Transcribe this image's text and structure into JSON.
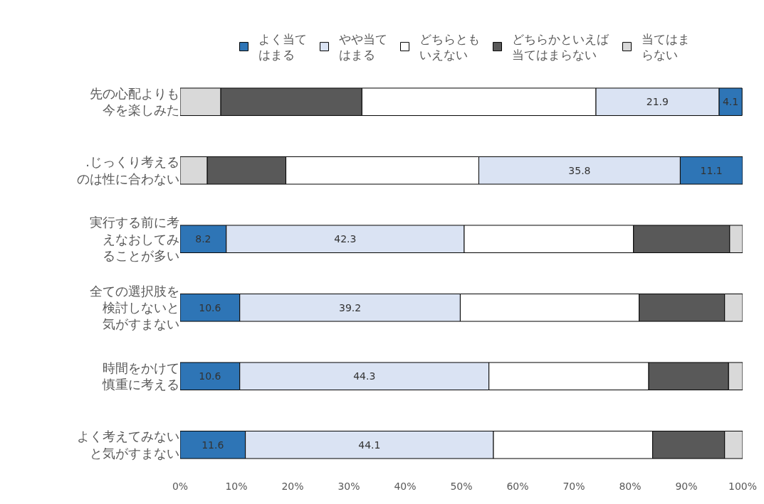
{
  "chart_data": {
    "type": "bar",
    "orientation": "horizontal",
    "legend": "top",
    "categories": [
      "先の心配よりも今を楽しみた",
      ".じっくり考えるのは性に合わない",
      "実行する前に考えなおしてみることが多い",
      "全ての選択肢を検討しないと気がすまない",
      "時間をかけて慎重に考える",
      "よく考えてみないと気がすまない"
    ],
    "xlim": [
      0,
      100
    ],
    "xticks": [
      {
        "value": 0,
        "label": "0%"
      },
      {
        "value": 10,
        "label": "10%"
      },
      {
        "value": 20,
        "label": "20%"
      },
      {
        "value": 30,
        "label": "30%"
      },
      {
        "value": 40,
        "label": "40%"
      },
      {
        "value": 50,
        "label": "50%"
      },
      {
        "value": 60,
        "label": "60%"
      },
      {
        "value": 70,
        "label": "70%"
      },
      {
        "value": 80,
        "label": "80%"
      },
      {
        "value": 90,
        "label": "90%"
      },
      {
        "value": 100,
        "label": "100%"
      }
    ],
    "grid": false,
    "series": [
      {
        "name": "よく当てはまる",
        "color": "#2e75b6",
        "values": [
          4.1,
          11.1,
          8.2,
          10.6,
          10.6,
          11.6
        ],
        "base": [
          95.8,
          88.9,
          0,
          0,
          0,
          0
        ],
        "value_labels": [
          "4.1",
          "11.1",
          "8.2",
          "10.6",
          "10.6",
          "11.6"
        ]
      },
      {
        "name": "やや当てはまる",
        "color": "#dae3f3",
        "values": [
          21.9,
          35.8,
          42.3,
          39.2,
          44.3,
          44.1
        ],
        "base": [
          73.9,
          53.1,
          8.2,
          10.6,
          10.6,
          11.6
        ],
        "value_labels": [
          "21.9",
          "35.8",
          "42.3",
          "39.2",
          "44.3",
          "44.1"
        ]
      },
      {
        "name": "どちらともいえない",
        "color": "#ffffff",
        "values": [
          41.6,
          34.3,
          30.1,
          31.8,
          28.4,
          28.3
        ],
        "base": [
          32.3,
          18.8,
          50.5,
          49.8,
          54.9,
          55.7
        ]
      },
      {
        "name": "どちらかといえば当てはまらない",
        "color": "#595959",
        "values": [
          25.1,
          14.0,
          17.1,
          15.2,
          14.2,
          12.8
        ],
        "base": [
          7.2,
          4.8,
          80.6,
          81.6,
          83.3,
          84.0
        ]
      },
      {
        "name": "当てはまらない",
        "color": "#d9d9d9",
        "values": [
          7.2,
          4.8,
          2.3,
          3.2,
          2.5,
          3.2
        ],
        "base": [
          0,
          0,
          97.7,
          96.8,
          97.5,
          96.8
        ]
      }
    ]
  }
}
